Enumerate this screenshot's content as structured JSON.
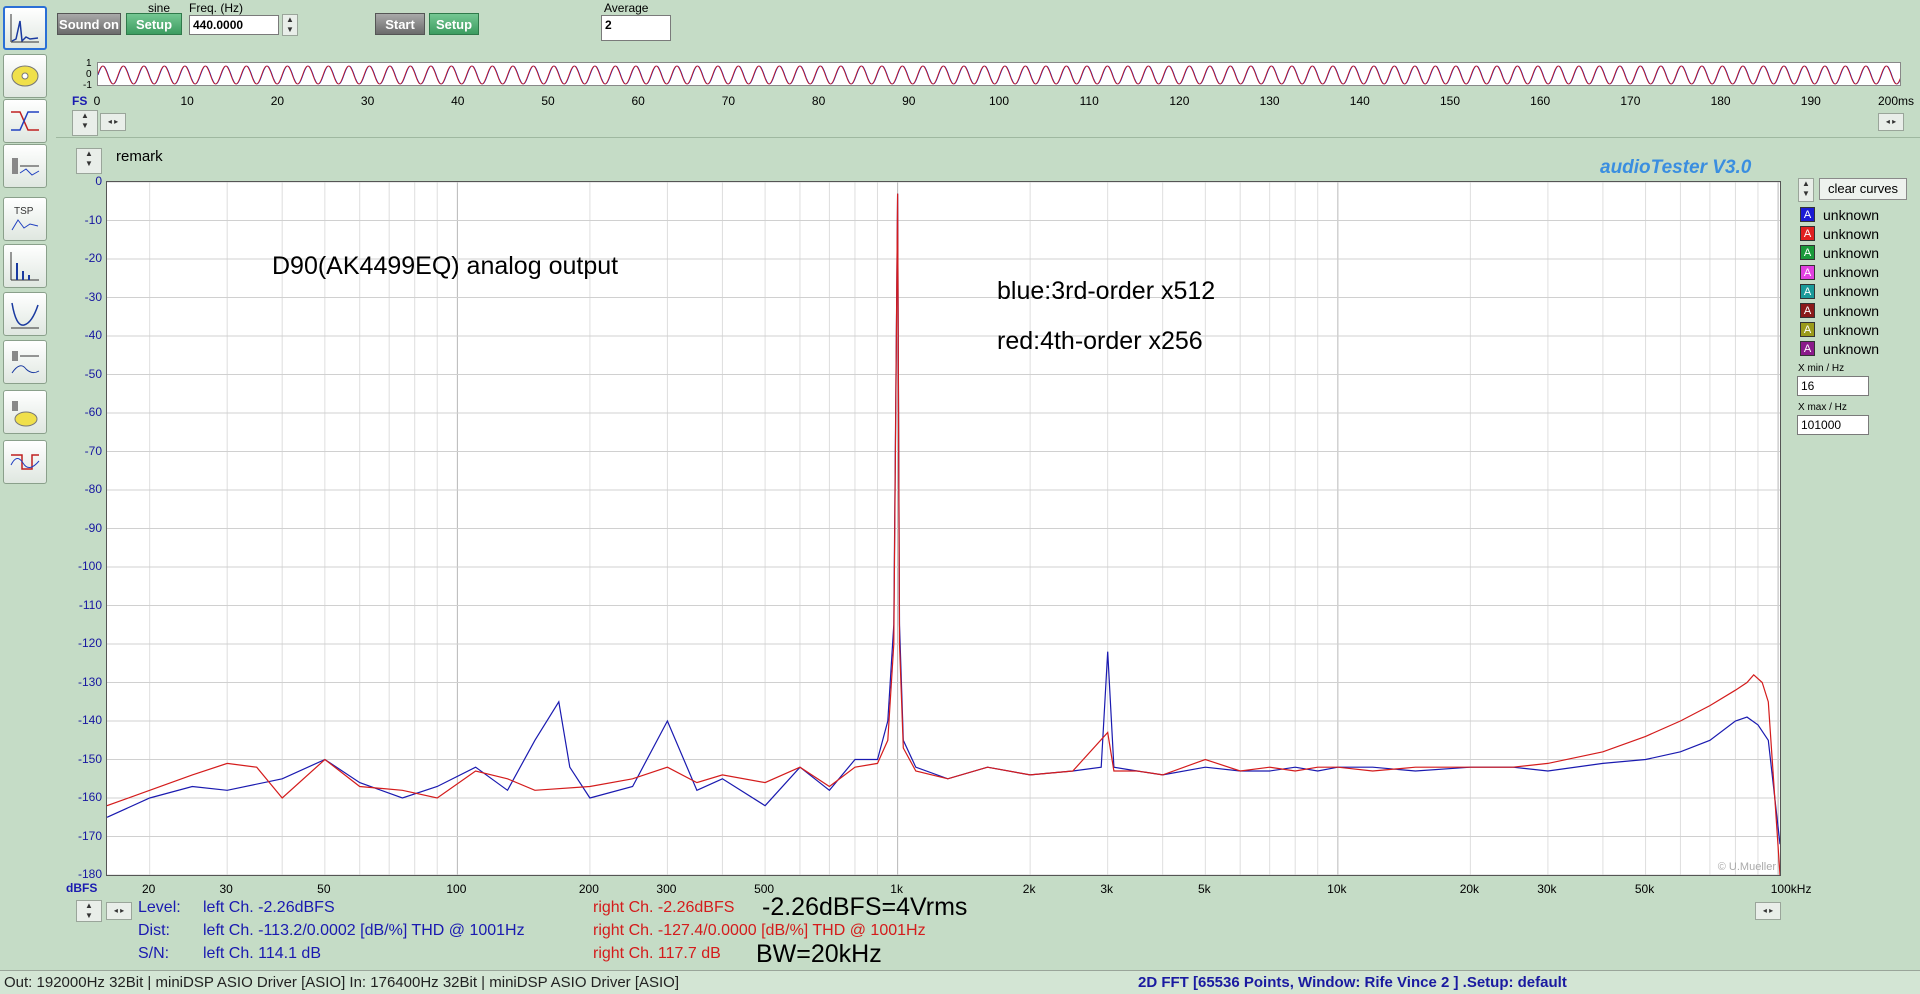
{
  "generator": {
    "waveform_label": "sine",
    "sound_on_label": "Sound on",
    "setup_label": "Setup",
    "freq_label": "Freq. (Hz)",
    "freq_value": "440.0000"
  },
  "analyzer": {
    "start_label": "Start",
    "setup_label": "Setup",
    "average_label": "Average",
    "average_value": "2"
  },
  "scope": {
    "y_ticks": [
      "1",
      "0",
      "-1"
    ],
    "fs_label": "FS",
    "time_ticks": [
      "0",
      "10",
      "20",
      "30",
      "40",
      "50",
      "60",
      "70",
      "80",
      "90",
      "100",
      "110",
      "120",
      "130",
      "140",
      "150",
      "160",
      "170",
      "180",
      "190"
    ],
    "time_end_label": "200ms"
  },
  "remark_label": "remark",
  "app_title": "audioTester  V3.0",
  "copyright": "© U.Mueller",
  "annotations": {
    "title": "D90(AK4499EQ) analog output",
    "blue_note": "blue:3rd-order x512",
    "red_note": "red:4th-order x256",
    "level_note": "-2.26dBFS=4Vrms",
    "bw_note": "BW=20kHz"
  },
  "chart_data": {
    "type": "line",
    "xscale": "log",
    "xlim": [
      16,
      101000
    ],
    "ylim": [
      -180,
      0
    ],
    "ylabel": "dBFS",
    "y_ticks": [
      "0",
      "-10",
      "-20",
      "-30",
      "-40",
      "-50",
      "-60",
      "-70",
      "-80",
      "-90",
      "-100",
      "-110",
      "-120",
      "-130",
      "-140",
      "-150",
      "-160",
      "-170",
      "-180"
    ],
    "x_ticks": [
      {
        "v": 20,
        "label": "20"
      },
      {
        "v": 30,
        "label": "30"
      },
      {
        "v": 50,
        "label": "50"
      },
      {
        "v": 100,
        "label": "100"
      },
      {
        "v": 200,
        "label": "200"
      },
      {
        "v": 300,
        "label": "300"
      },
      {
        "v": 500,
        "label": "500"
      },
      {
        "v": 1000,
        "label": "1k"
      },
      {
        "v": 2000,
        "label": "2k"
      },
      {
        "v": 3000,
        "label": "3k"
      },
      {
        "v": 5000,
        "label": "5k"
      },
      {
        "v": 10000,
        "label": "10k"
      },
      {
        "v": 20000,
        "label": "20k"
      },
      {
        "v": 30000,
        "label": "30k"
      },
      {
        "v": 50000,
        "label": "50k"
      },
      {
        "v": 100000,
        "label": "100kHz"
      }
    ],
    "series": [
      {
        "color": "#1a1ab0",
        "x": [
          16,
          20,
          25,
          30,
          40,
          50,
          60,
          75,
          90,
          110,
          130,
          150,
          170,
          180,
          200,
          250,
          300,
          350,
          400,
          500,
          600,
          700,
          800,
          900,
          950,
          980,
          1000,
          1010,
          1030,
          1100,
          1300,
          1600,
          2000,
          2500,
          2900,
          3000,
          3100,
          3500,
          4000,
          5000,
          6000,
          7000,
          8000,
          9000,
          10000,
          12000,
          15000,
          20000,
          25000,
          30000,
          40000,
          50000,
          60000,
          70000,
          80000,
          85000,
          90000,
          95000,
          101000
        ],
        "y": [
          -165,
          -160,
          -157,
          -158,
          -155,
          -150,
          -156,
          -160,
          -157,
          -152,
          -158,
          -145,
          -135,
          -152,
          -160,
          -157,
          -140,
          -158,
          -155,
          -162,
          -152,
          -158,
          -150,
          -150,
          -140,
          -115,
          -3,
          -115,
          -145,
          -152,
          -155,
          -152,
          -154,
          -153,
          -152,
          -122,
          -152,
          -153,
          -154,
          -152,
          -153,
          -153,
          -152,
          -153,
          -152,
          -152,
          -153,
          -152,
          -152,
          -153,
          -151,
          -150,
          -148,
          -145,
          -140,
          -139,
          -141,
          -145,
          -172
        ]
      },
      {
        "color": "#d41c1c",
        "x": [
          16,
          20,
          25,
          30,
          35,
          40,
          50,
          60,
          75,
          90,
          110,
          130,
          150,
          200,
          250,
          300,
          350,
          400,
          500,
          600,
          700,
          800,
          900,
          950,
          980,
          1000,
          1010,
          1030,
          1100,
          1300,
          1600,
          2000,
          2500,
          3000,
          3100,
          3500,
          4000,
          5000,
          6000,
          7000,
          8000,
          9000,
          10000,
          12000,
          15000,
          20000,
          25000,
          30000,
          40000,
          50000,
          60000,
          70000,
          80000,
          85000,
          88000,
          92000,
          95000,
          101000
        ],
        "y": [
          -162,
          -158,
          -154,
          -151,
          -152,
          -160,
          -150,
          -157,
          -158,
          -160,
          -153,
          -155,
          -158,
          -157,
          -155,
          -152,
          -156,
          -154,
          -156,
          -152,
          -157,
          -152,
          -151,
          -145,
          -120,
          -3,
          -120,
          -147,
          -153,
          -155,
          -152,
          -154,
          -153,
          -143,
          -153,
          -153,
          -154,
          -150,
          -153,
          -152,
          -153,
          -152,
          -152,
          -153,
          -152,
          -152,
          -152,
          -151,
          -148,
          -144,
          -140,
          -136,
          -132,
          -130,
          -128,
          -130,
          -135,
          -180
        ]
      }
    ]
  },
  "curve_panel": {
    "clear_label": "clear curves",
    "curves": [
      {
        "chip": "A",
        "color": "#1a1ad4",
        "label": "unknown"
      },
      {
        "chip": "A",
        "color": "#e02020",
        "label": "unknown"
      },
      {
        "chip": "A",
        "color": "#1a9a3a",
        "label": "unknown"
      },
      {
        "chip": "A",
        "color": "#e040e0",
        "label": "unknown"
      },
      {
        "chip": "A",
        "color": "#1a9a9a",
        "label": "unknown"
      },
      {
        "chip": "A",
        "color": "#8a1a1a",
        "label": "unknown"
      },
      {
        "chip": "A",
        "color": "#9a9a1a",
        "label": "unknown"
      },
      {
        "chip": "A",
        "color": "#8a1a8a",
        "label": "unknown"
      }
    ],
    "xmin_label": "X min / Hz",
    "xmin_value": "16",
    "xmax_label": "X max / Hz",
    "xmax_value": "101000"
  },
  "measurements": {
    "level_label": "Level:",
    "dist_label": "Dist:",
    "sn_label": "S/N:",
    "left_level": "left Ch. -2.26dBFS",
    "left_dist": "left Ch. -113.2/0.0002 [dB/%] THD @ 1001Hz",
    "left_sn": "left Ch. 114.1 dB",
    "right_level": "right Ch. -2.26dBFS",
    "right_dist": "right Ch. -127.4/0.0000 [dB/%] THD @ 1001Hz",
    "right_sn": "right Ch. 117.7 dB"
  },
  "status": {
    "io_info": "Out: 192000Hz 32Bit  | miniDSP ASIO Driver [ASIO] In: 176400Hz 32Bit  | miniDSP ASIO Driver [ASIO]",
    "fft_info": "2D FFT [65536 Points, Window: Rife Vince 2 ]  .Setup:  default"
  },
  "icons": [
    "spectrum-icon",
    "cd-icon",
    "filter-response-icon",
    "meter-icon",
    "tsp-icon",
    "bar-spectrum-icon",
    "impedance-icon",
    "level-meter-icon",
    "speaker-icon",
    "square-wave-icon"
  ]
}
